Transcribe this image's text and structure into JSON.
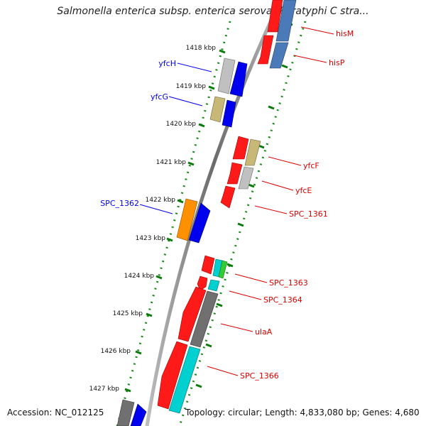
{
  "title": "Salmonella enterica subsp. enterica serovar Paratyphi C stra...",
  "footer": {
    "accession": "Accession: NC_012125",
    "summary": "Topology: circular; Length: 4,833,080 bp; Genes: 4,680"
  },
  "ticks": [
    {
      "label": "1418 kbp"
    },
    {
      "label": "1419 kbp"
    },
    {
      "label": "1420 kbp"
    },
    {
      "label": "1421 kbp"
    },
    {
      "label": "1422 kbp"
    },
    {
      "label": "1423 kbp"
    },
    {
      "label": "1424 kbp"
    },
    {
      "label": "1425 kbp"
    },
    {
      "label": "1426 kbp"
    },
    {
      "label": "1427 kbp"
    }
  ],
  "genes": {
    "forward": [
      {
        "label": "yfcH",
        "color": "#0000ee"
      },
      {
        "label": "yfcG",
        "color": "#0000ee"
      },
      {
        "label": "SPC_1362",
        "color": "#0000ee"
      }
    ],
    "reverse": [
      {
        "label": "hisM",
        "color": "#dd0000"
      },
      {
        "label": "hisP",
        "color": "#dd0000"
      },
      {
        "label": "yfcF",
        "color": "#dd0000"
      },
      {
        "label": "yfcE",
        "color": "#dd0000"
      },
      {
        "label": "SPC_1361",
        "color": "#dd0000"
      },
      {
        "label": "SPC_1363",
        "color": "#dd0000"
      },
      {
        "label": "SPC_1364",
        "color": "#dd0000"
      },
      {
        "label": "ulaA",
        "color": "#dd0000"
      },
      {
        "label": "SPC_1366",
        "color": "#dd0000"
      }
    ]
  },
  "colors": {
    "cds": "#ff0000",
    "forward_strand": "#0000ff",
    "backbone": "#808080",
    "tick": "#008000",
    "cog_gray": "#c0c0c0",
    "cog_olive": "#c8b878",
    "cog_orange": "#ff9000",
    "cog_cyan": "#00d0d0",
    "cog_steelblue": "#4a7ab8",
    "cog_darkgray": "#707070",
    "cog_green": "#33cc33"
  }
}
